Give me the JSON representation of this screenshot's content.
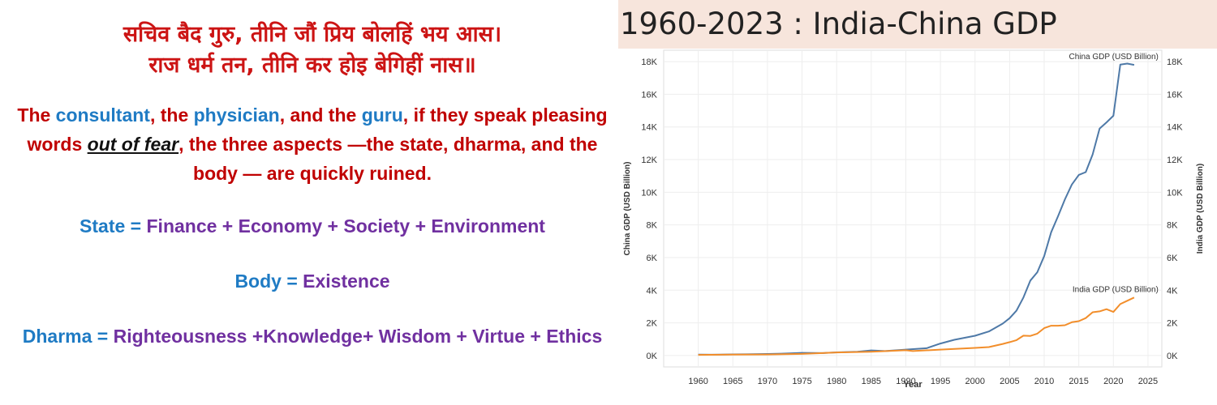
{
  "verse": {
    "hindi_line1": "सचिव बैद गुरु, तीनि जौं प्रिय बोलहिं भय आस।",
    "hindi_line2": "राज धर्म तन, तीनि कर होइ बेगिहीं नास॥"
  },
  "translation": {
    "p1": "The ",
    "consultant": "consultant",
    "p2": ", the ",
    "physician": "physician",
    "p3": ", and the ",
    "guru": "guru",
    "p4": ", if they speak pleasing words ",
    "fear": "out of fear",
    "p5": ", the three aspects —the state, dharma,  and the body — are quickly ruined."
  },
  "equations": {
    "state_lhs": "State = ",
    "state_rhs": "Finance + Economy + Society + Environment",
    "body_lhs": "Body = ",
    "body_rhs": "Existence",
    "dharma_lhs": "Dharma = ",
    "dharma_rhs": "Righteousness +Knowledge+ Wisdom + Virtue + Ethics"
  },
  "colors": {
    "red": "#c00000",
    "blue": "#1f7bc4",
    "purple": "#7030a0",
    "china_line": "#4e79a7",
    "india_line": "#f28e2b"
  },
  "chart_data": {
    "type": "line",
    "title": "1960-2023 : India-China GDP",
    "xlabel": "Year",
    "ylabel_left": "China GDP (USD Billion)",
    "ylabel_right": "India GDP (USD Billion)",
    "xlim": [
      1955,
      2027
    ],
    "ylim": [
      -700,
      18700
    ],
    "x_ticks": [
      1960,
      1965,
      1970,
      1975,
      1980,
      1985,
      1990,
      1995,
      2000,
      2005,
      2010,
      2015,
      2020,
      2025
    ],
    "y_ticks": [
      0,
      2000,
      4000,
      6000,
      8000,
      10000,
      12000,
      14000,
      16000,
      18000
    ],
    "y_tick_labels": [
      "0K",
      "2K",
      "4K",
      "6K",
      "8K",
      "10K",
      "12K",
      "14K",
      "16K",
      "18K"
    ],
    "grid": true,
    "series": [
      {
        "name": "China GDP (USD Billion)",
        "color": "#4e79a7",
        "x": [
          1960,
          1962,
          1965,
          1967,
          1970,
          1972,
          1975,
          1978,
          1980,
          1983,
          1985,
          1987,
          1990,
          1993,
          1995,
          1997,
          2000,
          2002,
          2004,
          2005,
          2006,
          2007,
          2008,
          2009,
          2010,
          2011,
          2012,
          2013,
          2014,
          2015,
          2016,
          2017,
          2018,
          2019,
          2020,
          2021,
          2022,
          2023
        ],
        "values": [
          60,
          47,
          70,
          72,
          93,
          114,
          163,
          150,
          191,
          230,
          310,
          272,
          361,
          444,
          734,
          962,
          1211,
          1471,
          1955,
          2286,
          2752,
          3550,
          4594,
          5101,
          6087,
          7552,
          8532,
          9570,
          10476,
          11062,
          11233,
          12310,
          13895,
          14280,
          14688,
          17820,
          17880,
          17800
        ]
      },
      {
        "name": "India GDP (USD Billion)",
        "color": "#f28e2b",
        "x": [
          1960,
          1965,
          1970,
          1975,
          1980,
          1985,
          1990,
          1991,
          1995,
          2000,
          2002,
          2004,
          2005,
          2006,
          2007,
          2008,
          2009,
          2010,
          2011,
          2012,
          2013,
          2014,
          2015,
          2016,
          2017,
          2018,
          2019,
          2020,
          2021,
          2022,
          2023
        ],
        "values": [
          37,
          59,
          62,
          98,
          186,
          232,
          321,
          270,
          360,
          468,
          515,
          709,
          820,
          940,
          1216,
          1198,
          1341,
          1675,
          1823,
          1827,
          1856,
          2039,
          2103,
          2294,
          2651,
          2702,
          2836,
          2671,
          3150,
          3353,
          3550
        ]
      }
    ]
  }
}
